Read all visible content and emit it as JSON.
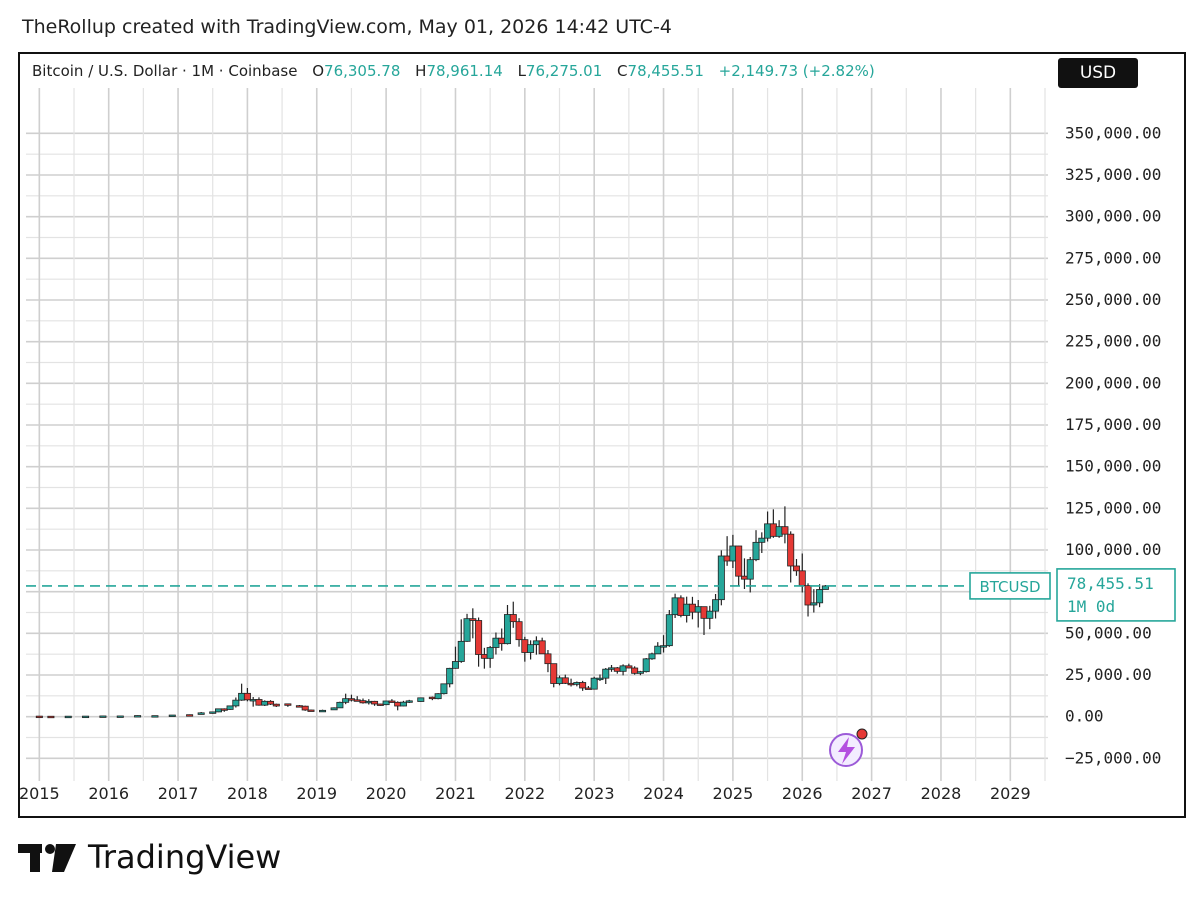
{
  "caption": "TheRollup created with TradingView.com, May 01, 2026 14:42 UTC-4",
  "header": {
    "symbol": "Bitcoin / U.S. Dollar · 1M · Coinbase",
    "open_label": "O",
    "open": "76,305.78",
    "high_label": "H",
    "high": "78,961.14",
    "low_label": "L",
    "low": "76,275.01",
    "close_label": "C",
    "close": "78,455.51",
    "change": "+2,149.73 (+2.82%)"
  },
  "currency": "USD",
  "price_tag": {
    "symbol": "BTCUSD",
    "price": "78,455.51",
    "interval": "1M 0d"
  },
  "brand": {
    "name": "TradingView"
  },
  "colors": {
    "up": "#26a69a",
    "down": "#e53935",
    "grid": "#cfcfcf",
    "text": "#222222"
  },
  "icons": {
    "alert": "lightning-bolt-icon"
  },
  "chart_data": {
    "type": "candlestick",
    "interval": "1M",
    "y_axis": {
      "ticks": [
        -25000,
        0,
        25000,
        50000,
        75000,
        100000,
        125000,
        150000,
        175000,
        200000,
        225000,
        250000,
        275000,
        300000,
        325000,
        350000
      ],
      "tick_labels": [
        "−25,000.00",
        "0.00",
        "25,000.00",
        "50,000.00",
        "",
        "100,000.00",
        "125,000.00",
        "150,000.00",
        "175,000.00",
        "200,000.00",
        "225,000.00",
        "250,000.00",
        "275,000.00",
        "300,000.00",
        "325,000.00",
        "350,000.00"
      ],
      "range": [
        -35000,
        370000
      ]
    },
    "x_axis": {
      "tick_labels": [
        "2015",
        "2016",
        "2017",
        "2018",
        "2019",
        "2020",
        "2021",
        "2022",
        "2023",
        "2024",
        "2025",
        "2026",
        "2027",
        "2028",
        "2029"
      ],
      "range": [
        "2014-10",
        "2029-07"
      ]
    },
    "grid": true,
    "last_price": 78455.51,
    "candles": [
      {
        "t": "2015-01",
        "o": 320,
        "h": 430,
        "l": 170,
        "c": 220
      },
      {
        "t": "2015-03",
        "o": 250,
        "h": 300,
        "l": 210,
        "c": 240
      },
      {
        "t": "2015-06",
        "o": 230,
        "h": 310,
        "l": 220,
        "c": 280
      },
      {
        "t": "2015-09",
        "o": 240,
        "h": 330,
        "l": 230,
        "c": 320
      },
      {
        "t": "2015-12",
        "o": 360,
        "h": 470,
        "l": 340,
        "c": 430
      },
      {
        "t": "2016-03",
        "o": 420,
        "h": 450,
        "l": 400,
        "c": 420
      },
      {
        "t": "2016-06",
        "o": 530,
        "h": 780,
        "l": 520,
        "c": 670
      },
      {
        "t": "2016-09",
        "o": 610,
        "h": 620,
        "l": 590,
        "c": 610
      },
      {
        "t": "2016-12",
        "o": 740,
        "h": 980,
        "l": 730,
        "c": 970
      },
      {
        "t": "2017-03",
        "o": 1190,
        "h": 1350,
        "l": 890,
        "c": 1080
      },
      {
        "t": "2017-05",
        "o": 1350,
        "h": 2800,
        "l": 1300,
        "c": 2300
      },
      {
        "t": "2017-07",
        "o": 2500,
        "h": 2950,
        "l": 1800,
        "c": 2870
      },
      {
        "t": "2017-08",
        "o": 2870,
        "h": 4700,
        "l": 2700,
        "c": 4700
      },
      {
        "t": "2017-09",
        "o": 4700,
        "h": 5000,
        "l": 2900,
        "c": 4340
      },
      {
        "t": "2017-10",
        "o": 4340,
        "h": 6470,
        "l": 4100,
        "c": 6470
      },
      {
        "t": "2017-11",
        "o": 6470,
        "h": 11500,
        "l": 5500,
        "c": 9900
      },
      {
        "t": "2017-12",
        "o": 9900,
        "h": 19800,
        "l": 9500,
        "c": 14000
      },
      {
        "t": "2018-01",
        "o": 14000,
        "h": 17200,
        "l": 9200,
        "c": 10100
      },
      {
        "t": "2018-02",
        "o": 10100,
        "h": 11800,
        "l": 6000,
        "c": 10300
      },
      {
        "t": "2018-03",
        "o": 10300,
        "h": 11600,
        "l": 6600,
        "c": 6900
      },
      {
        "t": "2018-04",
        "o": 6900,
        "h": 9800,
        "l": 6400,
        "c": 9200
      },
      {
        "t": "2018-05",
        "o": 9200,
        "h": 9900,
        "l": 7000,
        "c": 7500
      },
      {
        "t": "2018-06",
        "o": 7500,
        "h": 7800,
        "l": 5800,
        "c": 6400
      },
      {
        "t": "2018-08",
        "o": 7700,
        "h": 7800,
        "l": 5900,
        "c": 7000
      },
      {
        "t": "2018-10",
        "o": 6600,
        "h": 7000,
        "l": 6200,
        "c": 6300
      },
      {
        "t": "2018-11",
        "o": 6300,
        "h": 6600,
        "l": 3500,
        "c": 4000
      },
      {
        "t": "2018-12",
        "o": 4000,
        "h": 4300,
        "l": 3100,
        "c": 3700
      },
      {
        "t": "2019-02",
        "o": 3400,
        "h": 4200,
        "l": 3300,
        "c": 3800
      },
      {
        "t": "2019-04",
        "o": 4100,
        "h": 5600,
        "l": 4100,
        "c": 5300
      },
      {
        "t": "2019-05",
        "o": 5300,
        "h": 9000,
        "l": 5300,
        "c": 8600
      },
      {
        "t": "2019-06",
        "o": 8600,
        "h": 13800,
        "l": 7500,
        "c": 10800
      },
      {
        "t": "2019-07",
        "o": 10800,
        "h": 13200,
        "l": 9100,
        "c": 10100
      },
      {
        "t": "2019-08",
        "o": 10100,
        "h": 12300,
        "l": 9400,
        "c": 9600
      },
      {
        "t": "2019-09",
        "o": 9600,
        "h": 10900,
        "l": 7800,
        "c": 8300
      },
      {
        "t": "2019-10",
        "o": 8300,
        "h": 10500,
        "l": 7300,
        "c": 9200
      },
      {
        "t": "2019-11",
        "o": 9200,
        "h": 9500,
        "l": 6500,
        "c": 7600
      },
      {
        "t": "2019-12",
        "o": 7600,
        "h": 7800,
        "l": 6500,
        "c": 7200
      },
      {
        "t": "2020-01",
        "o": 7200,
        "h": 9600,
        "l": 6900,
        "c": 9400
      },
      {
        "t": "2020-02",
        "o": 9400,
        "h": 10500,
        "l": 8400,
        "c": 8600
      },
      {
        "t": "2020-03",
        "o": 8600,
        "h": 9200,
        "l": 3800,
        "c": 6400
      },
      {
        "t": "2020-04",
        "o": 6400,
        "h": 9500,
        "l": 6200,
        "c": 8700
      },
      {
        "t": "2020-05",
        "o": 8700,
        "h": 10100,
        "l": 8200,
        "c": 9500
      },
      {
        "t": "2020-07",
        "o": 9100,
        "h": 11400,
        "l": 8900,
        "c": 11300
      },
      {
        "t": "2020-09",
        "o": 11700,
        "h": 12100,
        "l": 9900,
        "c": 10800
      },
      {
        "t": "2020-10",
        "o": 10800,
        "h": 14100,
        "l": 10400,
        "c": 13800
      },
      {
        "t": "2020-11",
        "o": 13800,
        "h": 19900,
        "l": 13300,
        "c": 19700
      },
      {
        "t": "2020-12",
        "o": 19700,
        "h": 29300,
        "l": 17600,
        "c": 29000
      },
      {
        "t": "2021-01",
        "o": 29000,
        "h": 42000,
        "l": 28800,
        "c": 33100
      },
      {
        "t": "2021-02",
        "o": 33100,
        "h": 58400,
        "l": 32300,
        "c": 45200
      },
      {
        "t": "2021-03",
        "o": 45200,
        "h": 61700,
        "l": 44900,
        "c": 58800
      },
      {
        "t": "2021-04",
        "o": 58800,
        "h": 65000,
        "l": 47000,
        "c": 57700
      },
      {
        "t": "2021-05",
        "o": 57700,
        "h": 59500,
        "l": 30000,
        "c": 37300
      },
      {
        "t": "2021-06",
        "o": 37300,
        "h": 41300,
        "l": 28800,
        "c": 35000
      },
      {
        "t": "2021-07",
        "o": 35000,
        "h": 42400,
        "l": 29300,
        "c": 41500
      },
      {
        "t": "2021-08",
        "o": 41500,
        "h": 50500,
        "l": 37300,
        "c": 47100
      },
      {
        "t": "2021-09",
        "o": 47100,
        "h": 52900,
        "l": 39600,
        "c": 43800
      },
      {
        "t": "2021-10",
        "o": 43800,
        "h": 67000,
        "l": 43300,
        "c": 61300
      },
      {
        "t": "2021-11",
        "o": 61300,
        "h": 69000,
        "l": 53300,
        "c": 57000
      },
      {
        "t": "2021-12",
        "o": 57000,
        "h": 59100,
        "l": 42000,
        "c": 46200
      },
      {
        "t": "2022-01",
        "o": 46200,
        "h": 47900,
        "l": 33000,
        "c": 38500
      },
      {
        "t": "2022-02",
        "o": 38500,
        "h": 45800,
        "l": 34300,
        "c": 43200
      },
      {
        "t": "2022-03",
        "o": 43200,
        "h": 48200,
        "l": 37200,
        "c": 45500
      },
      {
        "t": "2022-04",
        "o": 45500,
        "h": 47400,
        "l": 37700,
        "c": 37700
      },
      {
        "t": "2022-05",
        "o": 37700,
        "h": 40000,
        "l": 26700,
        "c": 31800
      },
      {
        "t": "2022-06",
        "o": 31800,
        "h": 31900,
        "l": 17600,
        "c": 19900
      },
      {
        "t": "2022-07",
        "o": 19900,
        "h": 24700,
        "l": 18800,
        "c": 23300
      },
      {
        "t": "2022-08",
        "o": 23300,
        "h": 25200,
        "l": 19600,
        "c": 20000
      },
      {
        "t": "2022-09",
        "o": 20000,
        "h": 22800,
        "l": 18100,
        "c": 19400
      },
      {
        "t": "2022-10",
        "o": 19400,
        "h": 21100,
        "l": 18200,
        "c": 20500
      },
      {
        "t": "2022-11",
        "o": 20500,
        "h": 21500,
        "l": 15500,
        "c": 17200
      },
      {
        "t": "2022-12",
        "o": 17200,
        "h": 18400,
        "l": 16300,
        "c": 16500
      },
      {
        "t": "2023-01",
        "o": 16500,
        "h": 23900,
        "l": 16500,
        "c": 23100
      },
      {
        "t": "2023-02",
        "o": 23100,
        "h": 25300,
        "l": 21400,
        "c": 23100
      },
      {
        "t": "2023-03",
        "o": 23100,
        "h": 29200,
        "l": 19600,
        "c": 28500
      },
      {
        "t": "2023-04",
        "o": 28500,
        "h": 31000,
        "l": 26900,
        "c": 29300
      },
      {
        "t": "2023-05",
        "o": 29300,
        "h": 29800,
        "l": 25800,
        "c": 27200
      },
      {
        "t": "2023-06",
        "o": 27200,
        "h": 31400,
        "l": 24800,
        "c": 30500
      },
      {
        "t": "2023-07",
        "o": 30500,
        "h": 31800,
        "l": 28900,
        "c": 29200
      },
      {
        "t": "2023-08",
        "o": 29200,
        "h": 30200,
        "l": 25200,
        "c": 26000
      },
      {
        "t": "2023-09",
        "o": 26000,
        "h": 27500,
        "l": 24900,
        "c": 27000
      },
      {
        "t": "2023-10",
        "o": 27000,
        "h": 35200,
        "l": 26500,
        "c": 34700
      },
      {
        "t": "2023-11",
        "o": 34700,
        "h": 38400,
        "l": 34100,
        "c": 37700
      },
      {
        "t": "2023-12",
        "o": 37700,
        "h": 44700,
        "l": 37600,
        "c": 42300
      },
      {
        "t": "2024-01",
        "o": 42300,
        "h": 48900,
        "l": 38500,
        "c": 42600
      },
      {
        "t": "2024-02",
        "o": 42600,
        "h": 64000,
        "l": 41900,
        "c": 61200
      },
      {
        "t": "2024-03",
        "o": 61200,
        "h": 73800,
        "l": 59200,
        "c": 71300
      },
      {
        "t": "2024-04",
        "o": 71300,
        "h": 72800,
        "l": 59600,
        "c": 60700
      },
      {
        "t": "2024-05",
        "o": 60700,
        "h": 72000,
        "l": 56500,
        "c": 67500
      },
      {
        "t": "2024-06",
        "o": 67500,
        "h": 71900,
        "l": 58400,
        "c": 62700
      },
      {
        "t": "2024-07",
        "o": 62700,
        "h": 70000,
        "l": 53500,
        "c": 66000
      },
      {
        "t": "2024-08",
        "o": 66000,
        "h": 65600,
        "l": 49000,
        "c": 59000
      },
      {
        "t": "2024-09",
        "o": 59000,
        "h": 66500,
        "l": 52500,
        "c": 63300
      },
      {
        "t": "2024-10",
        "o": 63300,
        "h": 73600,
        "l": 58900,
        "c": 70200
      },
      {
        "t": "2024-11",
        "o": 70200,
        "h": 99800,
        "l": 66800,
        "c": 96400
      },
      {
        "t": "2024-12",
        "o": 96400,
        "h": 108300,
        "l": 90500,
        "c": 93400
      },
      {
        "t": "2025-01",
        "o": 93400,
        "h": 109100,
        "l": 89200,
        "c": 102400
      },
      {
        "t": "2025-02",
        "o": 102400,
        "h": 102500,
        "l": 78200,
        "c": 84300
      },
      {
        "t": "2025-03",
        "o": 84300,
        "h": 95000,
        "l": 76600,
        "c": 82500
      },
      {
        "t": "2025-04",
        "o": 82500,
        "h": 95800,
        "l": 74500,
        "c": 94200
      },
      {
        "t": "2025-05",
        "o": 94200,
        "h": 111900,
        "l": 93300,
        "c": 104600
      },
      {
        "t": "2025-06",
        "o": 104600,
        "h": 110600,
        "l": 98200,
        "c": 107100
      },
      {
        "t": "2025-07",
        "o": 107100,
        "h": 123100,
        "l": 105100,
        "c": 115700
      },
      {
        "t": "2025-08",
        "o": 115700,
        "h": 124400,
        "l": 107300,
        "c": 108200
      },
      {
        "t": "2025-09",
        "o": 108200,
        "h": 117900,
        "l": 107300,
        "c": 114000
      },
      {
        "t": "2025-10",
        "o": 114000,
        "h": 126200,
        "l": 104000,
        "c": 109500
      },
      {
        "t": "2025-11",
        "o": 109500,
        "h": 111200,
        "l": 80500,
        "c": 90400
      },
      {
        "t": "2025-12",
        "o": 90400,
        "h": 94600,
        "l": 84500,
        "c": 87500
      },
      {
        "t": "2026-01",
        "o": 87500,
        "h": 97900,
        "l": 74500,
        "c": 78600
      },
      {
        "t": "2026-02",
        "o": 78600,
        "h": 80000,
        "l": 60100,
        "c": 67000
      },
      {
        "t": "2026-03",
        "o": 67000,
        "h": 76500,
        "l": 62500,
        "c": 68300
      },
      {
        "t": "2026-04",
        "o": 68300,
        "h": 79500,
        "l": 65700,
        "c": 76300
      },
      {
        "t": "2026-05",
        "o": 76305.78,
        "h": 78961.14,
        "l": 76275.01,
        "c": 78455.51
      }
    ]
  }
}
